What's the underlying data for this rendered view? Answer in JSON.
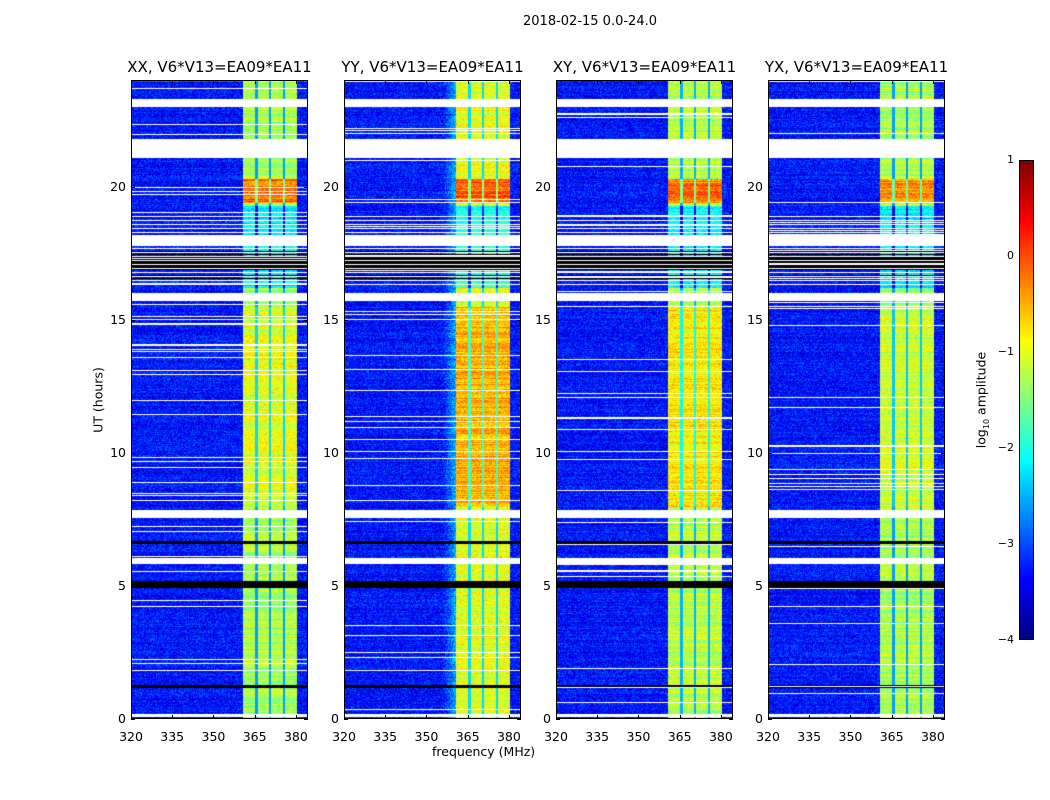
{
  "suptitle": "2018-02-15 0.0-24.0",
  "chart_data": {
    "type": "heatmap",
    "title": "2018-02-15 0.0-24.0",
    "xlabel": "frequency (MHz)",
    "ylabel": "UT (hours)",
    "xlim": [
      320,
      384.4
    ],
    "ylim": [
      0,
      24
    ],
    "xticks": [
      "320",
      "335",
      "350",
      "365",
      "380"
    ],
    "xtick_values": [
      320,
      335,
      350,
      365,
      380
    ],
    "yticks": [
      "0",
      "5",
      "10",
      "15",
      "20"
    ],
    "ytick_values": [
      0,
      5,
      10,
      15,
      20
    ],
    "panels": [
      {
        "title": "XX, V6*V13=EA09*EA11",
        "band_level": -1.3,
        "burst_level": -0.2,
        "mid_level": -1.0
      },
      {
        "title": "YY, V6*V13=EA09*EA11",
        "band_level": -1.0,
        "burst_level": -0.1,
        "mid_level": -0.5
      },
      {
        "title": "XY, V6*V13=EA09*EA11",
        "band_level": -1.2,
        "burst_level": -0.2,
        "mid_level": -0.8
      },
      {
        "title": "YX, V6*V13=EA09*EA11",
        "band_level": -1.3,
        "burst_level": -0.3,
        "mid_level": -1.1
      }
    ],
    "background_level": -3.3,
    "bright_band_mhz": [
      360.7,
      380.3
    ],
    "band_gaps_mhz": [
      365.5,
      370.4,
      375.5
    ],
    "burst_hours": [
      19.4,
      20.3
    ],
    "mid_activity_hours": [
      8.0,
      15.5
    ],
    "flagged_hours": [
      [
        23.0,
        23.3
      ],
      [
        21.1,
        21.8
      ],
      [
        15.7,
        16.0
      ],
      [
        7.57,
        7.86
      ],
      [
        5.84,
        6.07
      ],
      [
        17.8,
        18.2
      ],
      [
        0.1,
        0.2
      ]
    ],
    "dropout_hours": [
      [
        16.9,
        17.4
      ],
      [
        4.95,
        5.2
      ],
      [
        6.6,
        6.7
      ],
      [
        1.2,
        1.3
      ]
    ],
    "colorbar": {
      "label": "log10 amplitude",
      "label_main": "log",
      "label_sub": "10",
      "label_rest": " amplitude",
      "range": [
        -4,
        1
      ],
      "ticks": [
        "1",
        "0",
        "−1",
        "−2",
        "−3",
        "−4"
      ],
      "tick_values": [
        1,
        0,
        -1,
        -2,
        -3,
        -4
      ],
      "colormap": "jet"
    }
  }
}
